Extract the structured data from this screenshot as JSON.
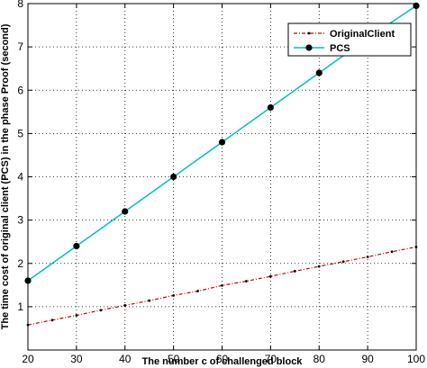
{
  "chart_data": {
    "type": "line",
    "xlabel": "The number c of challenged block",
    "ylabel": "The time cost of original client (PCS) in the phase Proof (second)",
    "xlim": [
      20,
      100
    ],
    "ylim": [
      0,
      8
    ],
    "xticks": [
      "20",
      "30",
      "40",
      "50",
      "60",
      "70",
      "80",
      "90",
      "100"
    ],
    "yticks": [
      "0",
      "1",
      "2",
      "3",
      "4",
      "5",
      "6",
      "7",
      "8"
    ],
    "grid": true,
    "legend_position": "top-right",
    "series": [
      {
        "name": "OriginalClient",
        "color": "#c00000",
        "style": "dash-dot with point markers",
        "x": [
          20,
          25,
          30,
          35,
          40,
          45,
          50,
          55,
          60,
          65,
          70,
          75,
          80,
          85,
          90,
          95,
          100
        ],
        "y": [
          0.58,
          0.69,
          0.8,
          0.92,
          1.03,
          1.14,
          1.26,
          1.36,
          1.49,
          1.59,
          1.7,
          1.82,
          1.93,
          2.04,
          2.15,
          2.27,
          2.38
        ]
      },
      {
        "name": "PCS",
        "color": "#00c0c0",
        "style": "solid line with large black circle markers",
        "x": [
          20,
          30,
          40,
          50,
          60,
          70,
          80,
          90,
          100
        ],
        "y": [
          1.6,
          2.4,
          3.2,
          4.0,
          4.8,
          5.6,
          6.4,
          7.2,
          7.95
        ]
      }
    ]
  }
}
